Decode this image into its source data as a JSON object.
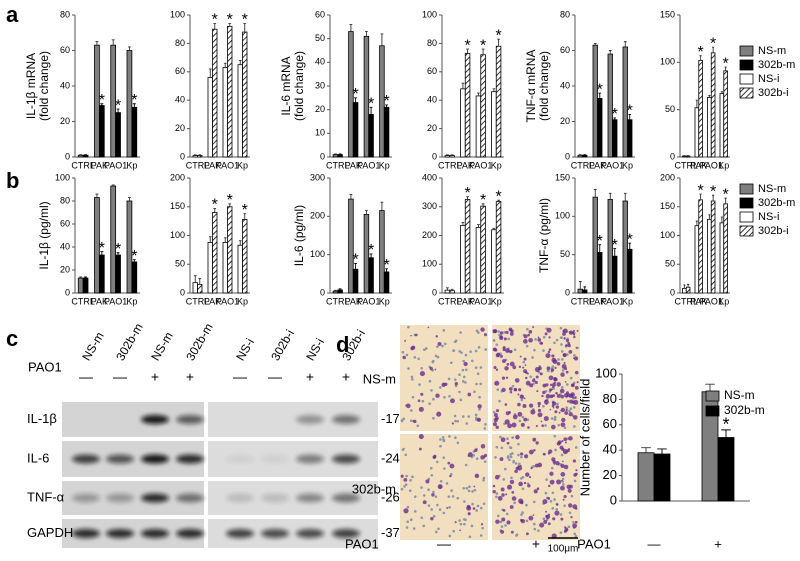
{
  "figure": {
    "panel_labels": [
      "a",
      "b",
      "c",
      "d"
    ]
  },
  "blot": {
    "lanes": [
      "NS-m",
      "302b-m",
      "NS-m",
      "302b-m",
      "NS-i",
      "302b-i",
      "NS-i",
      "302b-i"
    ],
    "treatment_label": "PAO1",
    "treatment": [
      "—",
      "—",
      "+",
      "+",
      "—",
      "—",
      "+",
      "+"
    ],
    "rows": [
      {
        "label": "IL-1β",
        "marker": "-17"
      },
      {
        "label": "IL-6",
        "marker": "-24"
      },
      {
        "label": "TNF-α",
        "marker": "-26"
      },
      {
        "label": "GAPDH",
        "marker": "-37"
      }
    ]
  },
  "micrographs": {
    "rows": [
      "NS-m",
      "302b-m"
    ],
    "treatment_label": "PAO1",
    "columns": [
      "—",
      "+"
    ],
    "scale_bar": "100μm"
  },
  "chart_data": [
    {
      "type": "bar",
      "ylabel": [
        "IL-1β mRNA",
        "(fold change)"
      ],
      "categories": [
        "CTRL",
        "PAK",
        "PAO1",
        "Kp"
      ],
      "ylim": [
        0,
        80
      ],
      "yticks": [
        0,
        20,
        40,
        60,
        80
      ],
      "annotation": "*",
      "series": [
        {
          "name": "NS-m",
          "color": "#7f7f7f",
          "values": [
            1,
            63,
            63,
            60
          ],
          "errors": [
            0.3,
            2,
            3,
            2
          ],
          "significant": [
            false,
            false,
            false,
            false
          ]
        },
        {
          "name": "302b-m",
          "color": "#000000",
          "values": [
            1,
            29,
            25,
            28
          ],
          "errors": [
            0.3,
            1,
            2,
            2
          ],
          "significant": [
            false,
            true,
            true,
            true
          ]
        }
      ]
    },
    {
      "type": "bar",
      "categories": [
        "CTRL",
        "PAK",
        "PAO1",
        "Kp"
      ],
      "ylim": [
        0,
        100
      ],
      "yticks": [
        0,
        20,
        40,
        60,
        80,
        100
      ],
      "annotation": "*",
      "series": [
        {
          "name": "NS-i",
          "color": "#ffffff",
          "values": [
            1,
            56,
            63,
            65
          ],
          "errors": [
            0.5,
            6,
            3,
            3
          ],
          "significant": [
            false,
            false,
            false,
            false
          ]
        },
        {
          "name": "302b-i",
          "color": "#ffffff",
          "hatch": true,
          "values": [
            1,
            90,
            92,
            88
          ],
          "errors": [
            0.5,
            4,
            2,
            6
          ],
          "significant": [
            false,
            true,
            true,
            true
          ]
        }
      ]
    },
    {
      "type": "bar",
      "ylabel": [
        "IL-6 mRNA",
        "(fold change)"
      ],
      "categories": [
        "CTRL",
        "PAK",
        "PAO1",
        "Kp"
      ],
      "ylim": [
        0,
        60
      ],
      "yticks": [
        0,
        10,
        20,
        30,
        40,
        50,
        60
      ],
      "annotation": "*",
      "series": [
        {
          "name": "NS-m",
          "color": "#7f7f7f",
          "values": [
            1,
            53,
            51,
            47
          ],
          "errors": [
            0.3,
            3,
            2,
            5
          ],
          "significant": [
            false,
            false,
            false,
            false
          ]
        },
        {
          "name": "302b-m",
          "color": "#000000",
          "values": [
            1,
            23,
            18,
            21
          ],
          "errors": [
            0.3,
            2,
            3,
            1
          ],
          "significant": [
            false,
            true,
            true,
            true
          ]
        }
      ]
    },
    {
      "type": "bar",
      "categories": [
        "CTRL",
        "PAK",
        "PAO1",
        "Kp"
      ],
      "ylim": [
        0,
        100
      ],
      "yticks": [
        0,
        20,
        40,
        60,
        80,
        100
      ],
      "annotation": "*",
      "series": [
        {
          "name": "NS-i",
          "color": "#ffffff",
          "values": [
            1,
            48,
            43,
            46
          ],
          "errors": [
            0.5,
            4,
            2,
            2
          ],
          "significant": [
            false,
            false,
            false,
            false
          ]
        },
        {
          "name": "302b-i",
          "color": "#ffffff",
          "hatch": true,
          "values": [
            1,
            73,
            72,
            78
          ],
          "errors": [
            0.5,
            3,
            4,
            5
          ],
          "significant": [
            false,
            true,
            true,
            true
          ]
        }
      ]
    },
    {
      "type": "bar",
      "ylabel": [
        "TNF-α mRNA",
        "(fold change)"
      ],
      "categories": [
        "CTRL",
        "PAK",
        "PAO1",
        "Kp"
      ],
      "ylim": [
        0,
        80
      ],
      "yticks": [
        0,
        20,
        40,
        60,
        80
      ],
      "annotation": "*",
      "series": [
        {
          "name": "NS-m",
          "color": "#7f7f7f",
          "values": [
            1,
            63,
            58,
            62
          ],
          "errors": [
            0.3,
            1,
            2,
            3
          ],
          "significant": [
            false,
            false,
            false,
            false
          ]
        },
        {
          "name": "302b-m",
          "color": "#000000",
          "values": [
            1,
            33,
            21,
            21
          ],
          "errors": [
            0.3,
            3,
            1,
            3
          ],
          "significant": [
            false,
            true,
            true,
            true
          ]
        }
      ]
    },
    {
      "type": "bar",
      "categories": [
        "CTRL",
        "PAK",
        "PAO1",
        "Kp"
      ],
      "ylim": [
        0,
        150
      ],
      "yticks": [
        0,
        50,
        100,
        150
      ],
      "annotation": "*",
      "series": [
        {
          "name": "NS-i",
          "color": "#ffffff",
          "values": [
            1,
            52,
            63,
            67
          ],
          "errors": [
            0.5,
            8,
            2,
            2
          ],
          "significant": [
            false,
            false,
            false,
            false
          ]
        },
        {
          "name": "302b-i",
          "color": "#ffffff",
          "hatch": true,
          "values": [
            1,
            102,
            110,
            91
          ],
          "errors": [
            0.5,
            5,
            6,
            4
          ],
          "significant": [
            false,
            true,
            true,
            true
          ]
        }
      ]
    },
    {
      "type": "bar",
      "ylabel": [
        "IL-1β  (pg/ml)"
      ],
      "categories": [
        "CTRL",
        "PAK",
        "PAO1",
        "Kp"
      ],
      "ylim": [
        0,
        100
      ],
      "yticks": [
        0,
        20,
        40,
        60,
        80,
        100
      ],
      "annotation": "*",
      "series": [
        {
          "name": "NS-m",
          "color": "#7f7f7f",
          "values": [
            13,
            83,
            93,
            80
          ],
          "errors": [
            1,
            3,
            1,
            3
          ],
          "significant": [
            false,
            false,
            false,
            false
          ]
        },
        {
          "name": "302b-m",
          "color": "#000000",
          "values": [
            13,
            33,
            33,
            27
          ],
          "errors": [
            1,
            3,
            2,
            2
          ],
          "significant": [
            false,
            true,
            true,
            true
          ]
        }
      ]
    },
    {
      "type": "bar",
      "categories": [
        "CTRL",
        "PAK",
        "PAO1",
        "Kp"
      ],
      "ylim": [
        0,
        200
      ],
      "yticks": [
        0,
        50,
        100,
        150,
        200
      ],
      "annotation": "*",
      "series": [
        {
          "name": "NS-i",
          "color": "#ffffff",
          "values": [
            18,
            88,
            88,
            83
          ],
          "errors": [
            12,
            10,
            8,
            8
          ],
          "significant": [
            false,
            false,
            false,
            false
          ]
        },
        {
          "name": "302b-i",
          "color": "#ffffff",
          "hatch": true,
          "values": [
            15,
            140,
            150,
            128
          ],
          "errors": [
            10,
            7,
            5,
            10
          ],
          "significant": [
            false,
            true,
            true,
            true
          ]
        }
      ]
    },
    {
      "type": "bar",
      "ylabel": [
        "IL-6 (pg/ml)"
      ],
      "categories": [
        "CTRL",
        "PAK",
        "PAO1",
        "Kp"
      ],
      "ylim": [
        0,
        300
      ],
      "yticks": [
        0,
        100,
        200,
        300
      ],
      "annotation": "*",
      "series": [
        {
          "name": "NS-m",
          "color": "#7f7f7f",
          "values": [
            5,
            245,
            205,
            215
          ],
          "errors": [
            2,
            12,
            10,
            22
          ],
          "significant": [
            false,
            false,
            false,
            false
          ]
        },
        {
          "name": "302b-m",
          "color": "#000000",
          "values": [
            8,
            62,
            92,
            55
          ],
          "errors": [
            3,
            15,
            10,
            8
          ],
          "significant": [
            false,
            true,
            true,
            true
          ]
        }
      ]
    },
    {
      "type": "bar",
      "categories": [
        "CTRL",
        "PAK",
        "PAO1",
        "Kp"
      ],
      "ylim": [
        0,
        400
      ],
      "yticks": [
        0,
        100,
        200,
        300,
        400
      ],
      "annotation": "*",
      "series": [
        {
          "name": "NS-i",
          "color": "#ffffff",
          "values": [
            10,
            235,
            228,
            220
          ],
          "errors": [
            8,
            10,
            10,
            5
          ],
          "significant": [
            false,
            false,
            false,
            false
          ]
        },
        {
          "name": "302b-i",
          "color": "#ffffff",
          "hatch": true,
          "values": [
            8,
            325,
            302,
            318
          ],
          "errors": [
            5,
            10,
            8,
            5
          ],
          "significant": [
            false,
            true,
            true,
            true
          ]
        }
      ]
    },
    {
      "type": "bar",
      "ylabel": [
        "TNF-α  (pg/ml)"
      ],
      "categories": [
        "CTRL",
        "PAK",
        "PAO1",
        "Kp"
      ],
      "ylim": [
        0,
        150
      ],
      "yticks": [
        0,
        50,
        100,
        150
      ],
      "annotation": "*",
      "series": [
        {
          "name": "NS-m",
          "color": "#7f7f7f",
          "values": [
            5,
            125,
            122,
            120
          ],
          "errors": [
            10,
            10,
            8,
            10
          ],
          "significant": [
            false,
            false,
            false,
            false
          ]
        },
        {
          "name": "302b-m",
          "color": "#000000",
          "values": [
            4,
            53,
            48,
            57
          ],
          "errors": [
            4,
            10,
            10,
            8
          ],
          "significant": [
            false,
            true,
            true,
            true
          ]
        }
      ]
    },
    {
      "type": "bar",
      "categories": [
        "CTRL",
        "PAK",
        "PAO1",
        "Kp"
      ],
      "ylim": [
        0,
        200
      ],
      "yticks": [
        0,
        50,
        100,
        150,
        200
      ],
      "annotation": "*",
      "series": [
        {
          "name": "NS-i",
          "color": "#ffffff",
          "values": [
            8,
            117,
            128,
            122
          ],
          "errors": [
            6,
            8,
            8,
            10
          ],
          "significant": [
            false,
            false,
            false,
            false
          ]
        },
        {
          "name": "302b-i",
          "color": "#ffffff",
          "hatch": true,
          "values": [
            10,
            162,
            160,
            155
          ],
          "errors": [
            5,
            10,
            10,
            10
          ],
          "significant": [
            false,
            true,
            true,
            true
          ]
        }
      ]
    },
    {
      "type": "bar",
      "ylabel": [
        "Number of cells/field"
      ],
      "xlabel": "PAO1",
      "categories": [
        "—",
        "+"
      ],
      "ylim": [
        0,
        100
      ],
      "yticks": [
        0,
        20,
        40,
        60,
        80,
        100
      ],
      "annotation": "*",
      "series": [
        {
          "name": "NS-m",
          "color": "#7f7f7f",
          "values": [
            38,
            86
          ],
          "errors": [
            4,
            6
          ],
          "significant": [
            false,
            false
          ]
        },
        {
          "name": "302b-m",
          "color": "#000000",
          "values": [
            37,
            50
          ],
          "errors": [
            4,
            6
          ],
          "significant": [
            false,
            true
          ]
        }
      ]
    }
  ]
}
